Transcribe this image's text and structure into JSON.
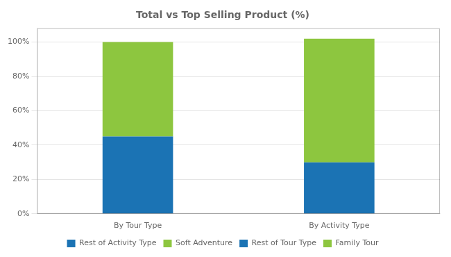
{
  "chart_data": {
    "type": "bar",
    "title": "Total vs Top Selling Product (%)",
    "categories": [
      "By Tour Type",
      "By Activity Type"
    ],
    "series": [
      {
        "name": "Rest of Activity Type",
        "color": "#1B73B4",
        "values": [
          null,
          0.3
        ]
      },
      {
        "name": "Soft Adventure",
        "color": "#8DC63F",
        "values": [
          null,
          0.72
        ]
      },
      {
        "name": "Rest of Tour Type",
        "color": "#1B73B4",
        "values": [
          0.45,
          null
        ]
      },
      {
        "name": "Family Tour",
        "color": "#8DC63F",
        "values": [
          0.55,
          null
        ]
      }
    ],
    "stacked": true,
    "ylim": [
      0,
      1.08
    ],
    "yticks": [
      {
        "value": 0.0,
        "label": "0%"
      },
      {
        "value": 0.2,
        "label": "20%"
      },
      {
        "value": 0.4,
        "label": "40%"
      },
      {
        "value": 0.6,
        "label": "60%"
      },
      {
        "value": 0.8,
        "label": "80%"
      },
      {
        "value": 1.0,
        "label": "100%"
      }
    ],
    "grid": true,
    "legend": "bottom"
  }
}
